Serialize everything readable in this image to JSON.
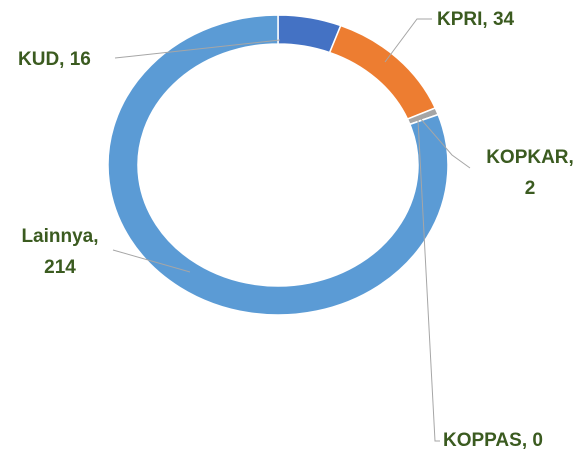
{
  "chart_data": {
    "type": "donut",
    "values": [
      16,
      34,
      2,
      0,
      214
    ],
    "value_labels": [
      "KUD, 16",
      "KPRI, 34",
      "KOPKAR, 2",
      "KOPPAS, 0",
      "Lainnya, 214"
    ],
    "colors": [
      "#4472c4",
      "#ed7d31",
      "#a5a5a5",
      "#ffc000",
      "#5b9bd5"
    ]
  }
}
